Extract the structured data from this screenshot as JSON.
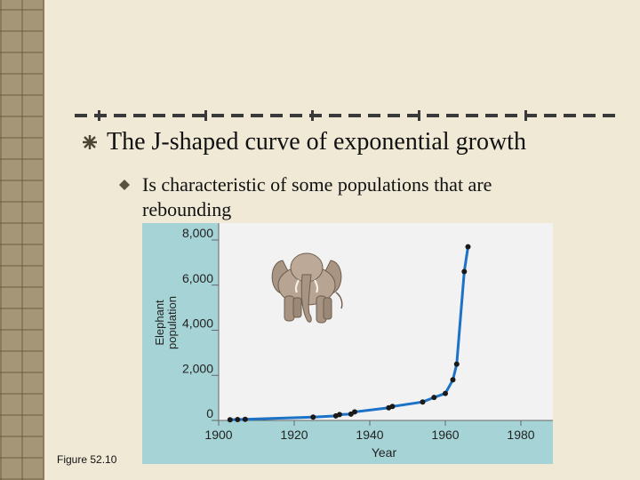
{
  "slide": {
    "title": "The J-shaped curve of exponential growth",
    "bullet": "Is characteristic of some populations that are rebounding",
    "figure_label": "Figure 52.10"
  },
  "colors": {
    "background": "#efe9d6",
    "chart_panel": "#a6d4d6",
    "plot_area": "#f2f2f2",
    "curve": "#1c72c7"
  },
  "icons": {
    "title_bullet": "star-bullet-icon",
    "bullet": "diamond-bullet-icon",
    "illustration": "elephant-illustration"
  },
  "chart_data": {
    "type": "line",
    "xlabel": "Year",
    "ylabel": "Elephant population",
    "xlim": [
      1900,
      1980
    ],
    "ylim": [
      0,
      8000
    ],
    "x_ticks": [
      1900,
      1920,
      1940,
      1960,
      1980
    ],
    "y_ticks": [
      0,
      2000,
      4000,
      6000,
      8000
    ],
    "y_tick_labels": [
      "0",
      "2,000",
      "4,000",
      "6,000",
      "8,000"
    ],
    "grid": false,
    "series": [
      {
        "x": [
          1903,
          1905,
          1907,
          1925,
          1931,
          1932,
          1935,
          1936,
          1945,
          1946,
          1954,
          1957,
          1960,
          1962,
          1963,
          1965,
          1966
        ],
        "y": [
          30,
          40,
          50,
          150,
          200,
          260,
          280,
          380,
          560,
          620,
          820,
          1020,
          1200,
          1800,
          2500,
          6600,
          7700
        ]
      }
    ]
  }
}
